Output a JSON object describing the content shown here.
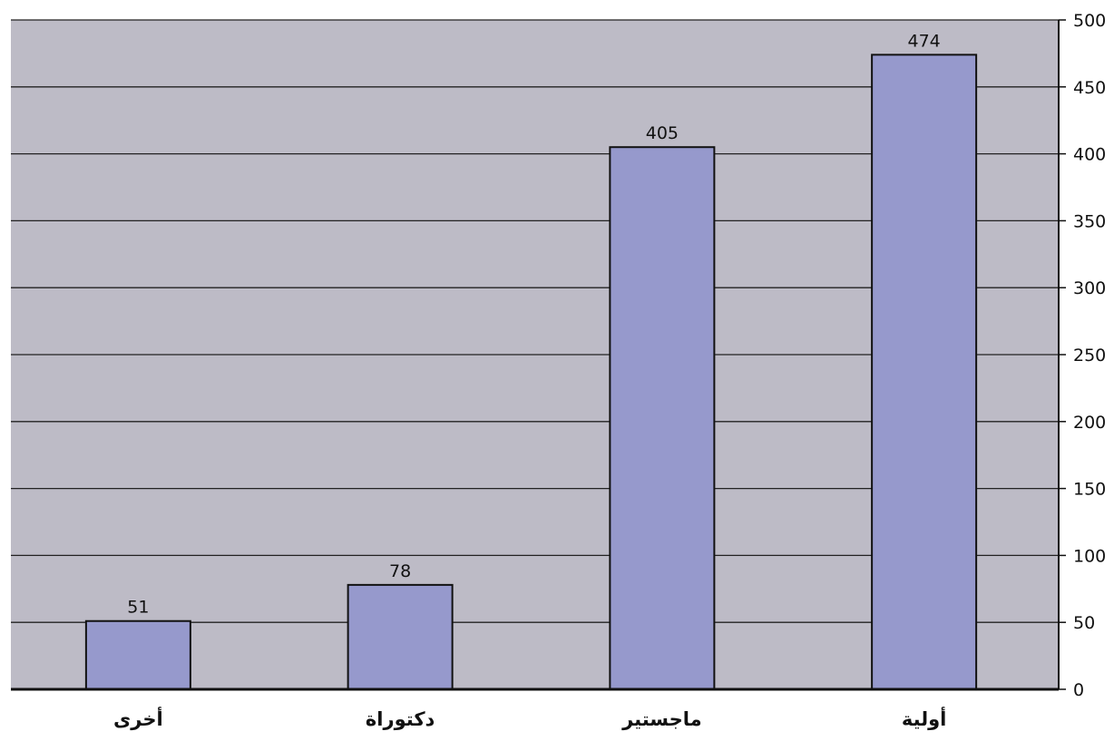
{
  "chart_data": {
    "type": "bar",
    "categories": [
      "أخرى",
      "دكتوراة",
      "ماجستير",
      "أولية"
    ],
    "values": [
      51,
      78,
      405,
      474
    ],
    "title": "",
    "xlabel": "",
    "ylabel": "",
    "ylim": [
      0,
      500
    ],
    "yticks": [
      0,
      50,
      100,
      150,
      200,
      250,
      300,
      350,
      400,
      450,
      500
    ],
    "y_axis_side": "right",
    "grid": true,
    "data_labels": true
  },
  "colors": {
    "plot_background": "#bdbbc6",
    "bar_fill": "#9699cc",
    "bar_stroke": "#111111",
    "gridline": "#222222"
  }
}
